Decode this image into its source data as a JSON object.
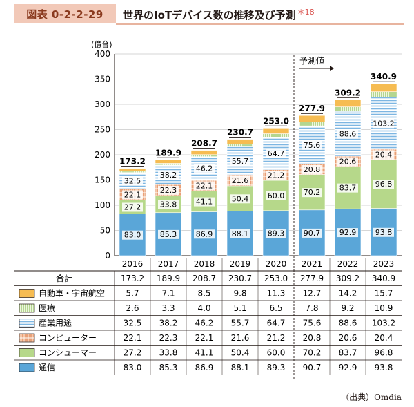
{
  "header": {
    "figure_label": "図表 0-2-2-29",
    "title": "世界のIoTデバイス数の推移及び予測",
    "note": "＊18"
  },
  "source": "（出典）Omdia",
  "chart_data": {
    "type": "bar",
    "stacked": true,
    "yunit": "(億台)",
    "ylim": [
      0,
      400
    ],
    "yticks": [
      0,
      50,
      100,
      150,
      200,
      250,
      300,
      350,
      400
    ],
    "categories": [
      "2016",
      "2017",
      "2018",
      "2019",
      "2020",
      "2021",
      "2022",
      "2023"
    ],
    "forecast_label": "予測値",
    "forecast_start_index": 5,
    "total_label": "合計",
    "totals": [
      173.2,
      189.9,
      208.7,
      230.7,
      253.0,
      277.9,
      309.2,
      340.9
    ],
    "totals_text": [
      "173.2",
      "189.9",
      "208.7",
      "230.7",
      "253.0",
      "277.9",
      "309.2",
      "340.9"
    ],
    "series": [
      {
        "name": "通信",
        "color": "#5aa6d8",
        "pattern": "solid",
        "values": [
          83.0,
          85.3,
          86.9,
          88.1,
          89.3,
          90.7,
          92.9,
          93.8
        ],
        "text": [
          "83.0",
          "85.3",
          "86.9",
          "88.1",
          "89.3",
          "90.7",
          "92.9",
          "93.8"
        ]
      },
      {
        "name": "コンシューマー",
        "color": "#b6d88a",
        "pattern": "solid",
        "values": [
          27.2,
          33.8,
          41.1,
          50.4,
          60.0,
          70.2,
          83.7,
          96.8
        ],
        "text": [
          "27.2",
          "33.8",
          "41.1",
          "50.4",
          "60.0",
          "70.2",
          "83.7",
          "96.8"
        ]
      },
      {
        "name": "コンピューター",
        "color": "#f0b089",
        "pattern": "grid",
        "values": [
          22.1,
          22.3,
          22.1,
          21.6,
          21.2,
          20.8,
          20.6,
          20.4
        ],
        "text": [
          "22.1",
          "22.3",
          "22.1",
          "21.6",
          "21.2",
          "20.8",
          "20.6",
          "20.4"
        ]
      },
      {
        "name": "産業用途",
        "color": "#8fc3e8",
        "pattern": "hstripe",
        "values": [
          32.5,
          38.2,
          46.2,
          55.7,
          64.7,
          75.6,
          88.6,
          103.2
        ],
        "text": [
          "32.5",
          "38.2",
          "46.2",
          "55.7",
          "64.7",
          "75.6",
          "88.6",
          "103.2"
        ]
      },
      {
        "name": "医療",
        "color": "#a9cf6e",
        "pattern": "vstripe",
        "values": [
          2.6,
          3.3,
          4.0,
          5.1,
          6.5,
          7.8,
          9.2,
          10.9
        ],
        "text": [
          "2.6",
          "3.3",
          "4.0",
          "5.1",
          "6.5",
          "7.8",
          "9.2",
          "10.9"
        ]
      },
      {
        "name": "自動車・宇宙航空",
        "color": "#f6bc52",
        "pattern": "solid",
        "values": [
          5.7,
          7.1,
          8.5,
          9.8,
          11.3,
          12.7,
          14.2,
          15.7
        ],
        "text": [
          "5.7",
          "7.1",
          "8.5",
          "9.8",
          "11.3",
          "12.7",
          "14.2",
          "15.7"
        ]
      }
    ],
    "bar_labels_series": [
      "通信",
      "コンシューマー",
      "コンピューター",
      "産業用途"
    ],
    "table_row_order": [
      "自動車・宇宙航空",
      "医療",
      "産業用途",
      "コンピューター",
      "コンシューマー",
      "通信"
    ]
  }
}
